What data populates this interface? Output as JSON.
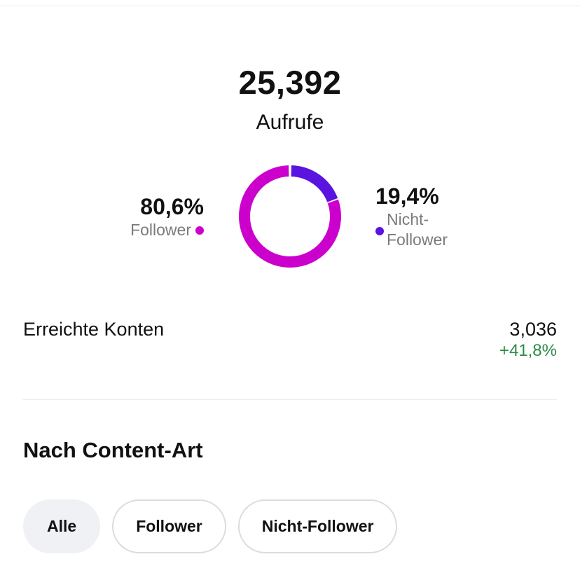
{
  "summary": {
    "total_value": "25,392",
    "total_label": "Aufrufe"
  },
  "breakdown": {
    "followers": {
      "percent": "80,6%",
      "label": "Follower",
      "share": 0.806,
      "color": "#cc00cc"
    },
    "non_followers": {
      "percent": "19,4%",
      "label": "Nicht-Follower",
      "share": 0.194,
      "color": "#5a14e0"
    }
  },
  "reach": {
    "label": "Erreichte Konten",
    "value": "3,036",
    "change": "+41,8%",
    "change_color": "#2e8b47"
  },
  "content_type": {
    "title": "Nach Content-Art",
    "filters": [
      {
        "label": "Alle",
        "active": true
      },
      {
        "label": "Follower",
        "active": false
      },
      {
        "label": "Nicht-Follower",
        "active": false
      }
    ]
  }
}
